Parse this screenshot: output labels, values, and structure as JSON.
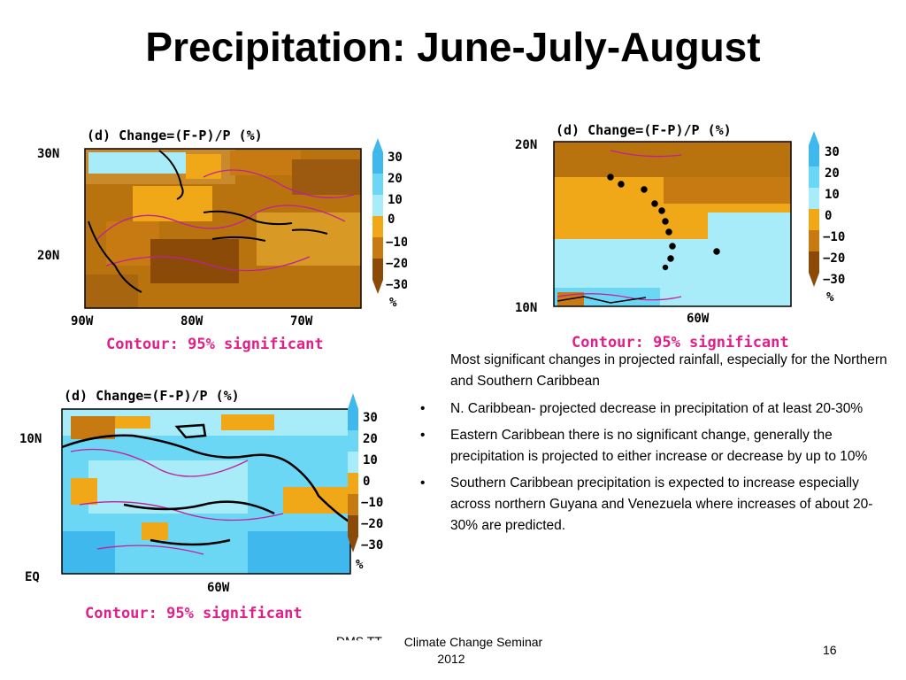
{
  "slide": {
    "title": "Precipitation: June-July-August",
    "page_number": "16",
    "footer_left": "DMS TT",
    "footer_line1": "Climate Change Seminar",
    "footer_line2": "2012"
  },
  "maps": [
    {
      "panel_title": "(d) Change=(F-P)/P   (%)",
      "lat_labels": [
        "30N",
        "20N"
      ],
      "lon_labels": [
        "90W",
        "80W",
        "70W"
      ],
      "contour_note": "Contour: 95% significant"
    },
    {
      "panel_title": "(d) Change=(F-P)/P   (%)",
      "lat_labels": [
        "20N",
        "10N"
      ],
      "lon_labels": [
        "60W"
      ],
      "contour_note": "Contour: 95% significant"
    },
    {
      "panel_title": "(d) Change=(F-P)/P   (%)",
      "lat_labels": [
        "10N",
        "EQ"
      ],
      "lon_labels": [
        "60W"
      ],
      "contour_note": "Contour: 95% significant"
    }
  ],
  "colorbar": {
    "labels": [
      "30",
      "20",
      "10",
      "0",
      "−10",
      "−20",
      "−30"
    ],
    "unit": "%",
    "colors": [
      "#3fb8ee",
      "#6cd6f5",
      "#a7ecf8",
      "#ddf7fb",
      "#f0a818",
      "#c87a12",
      "#8c4a08"
    ]
  },
  "bullets": [
    "Most significant changes in projected rainfall, especially for the Northern and Southern Caribbean",
    "N. Caribbean- projected decrease in precipitation of at least 20-30%",
    "Eastern Caribbean there is no significant change, generally the precipitation is projected to either increase or decrease by up to 10%",
    "Southern Caribbean precipitation is expected to increase especially across northern Guyana and Venezuela where increases of about 20-30% are predicted."
  ],
  "bullet_symbol": "•"
}
